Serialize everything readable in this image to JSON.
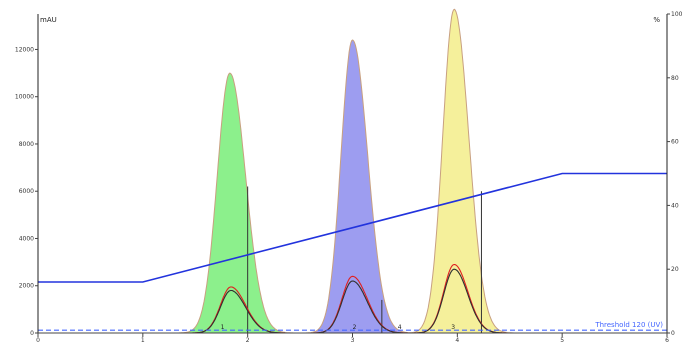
{
  "chart_data": {
    "type": "line",
    "title": "",
    "left_axis_unit": "mAU",
    "right_axis_unit": "%",
    "x_range": [
      0,
      6
    ],
    "y_left_range": [
      0,
      13500
    ],
    "y_right_range": [
      0,
      100
    ],
    "x_ticks": [
      {
        "value": 0,
        "label": "0"
      },
      {
        "value": 1,
        "label": "1"
      },
      {
        "value": 2,
        "label": "2"
      },
      {
        "value": 3,
        "label": "3"
      },
      {
        "value": 4,
        "label": "4"
      },
      {
        "value": 5,
        "label": "5"
      },
      {
        "value": 6,
        "label": "6"
      }
    ],
    "y_left_ticks": [
      {
        "value": 0,
        "label": "0"
      },
      {
        "value": 2000,
        "label": "2000"
      },
      {
        "value": 4000,
        "label": "4000"
      },
      {
        "value": 6000,
        "label": "6000"
      },
      {
        "value": 8000,
        "label": "8000"
      },
      {
        "value": 10000,
        "label": "10000"
      },
      {
        "value": 12000,
        "label": "12000"
      }
    ],
    "y_right_ticks": [
      {
        "value": 0,
        "label": "0"
      },
      {
        "value": 20,
        "label": "20"
      },
      {
        "value": 40,
        "label": "40"
      },
      {
        "value": 60,
        "label": "60"
      },
      {
        "value": 80,
        "label": "80"
      },
      {
        "value": 100,
        "label": "100"
      }
    ],
    "grid": false,
    "peaks": [
      {
        "label": "1",
        "center": 1.83,
        "height": 11000,
        "sigma_left": 0.12,
        "sigma_right": 0.15,
        "fill": "#8cf08c",
        "stroke": "#c8a080",
        "cut": 2.0,
        "cut_top": 6200,
        "label_x": 1.76
      },
      {
        "label": "2",
        "center": 3.0,
        "height": 12400,
        "sigma_left": 0.11,
        "sigma_right": 0.145,
        "fill": "#9d9df0",
        "stroke": "#c8a080",
        "cut": 3.28,
        "cut_top": 1400,
        "label_x": 3.02
      },
      {
        "label": "3",
        "center": 3.97,
        "height": 13700,
        "sigma_left": 0.11,
        "sigma_right": 0.14,
        "fill": "#f5f09b",
        "stroke": "#c8a080",
        "cut": 4.23,
        "cut_top": 6000,
        "label_x": 3.96
      }
    ],
    "small_peaks": [
      {
        "center": 1.84,
        "height": 1950,
        "sigma_left": 0.1,
        "sigma_right": 0.14,
        "color": "#e02020"
      },
      {
        "center": 1.84,
        "height": 1800,
        "sigma_left": 0.1,
        "sigma_right": 0.14,
        "color": "#303030"
      },
      {
        "center": 3.0,
        "height": 2400,
        "sigma_left": 0.1,
        "sigma_right": 0.14,
        "color": "#e02020"
      },
      {
        "center": 3.0,
        "height": 2200,
        "sigma_left": 0.1,
        "sigma_right": 0.14,
        "color": "#303030"
      },
      {
        "center": 3.97,
        "height": 2900,
        "sigma_left": 0.1,
        "sigma_right": 0.13,
        "color": "#e02020"
      },
      {
        "center": 3.97,
        "height": 2700,
        "sigma_left": 0.1,
        "sigma_right": 0.13,
        "color": "#303030"
      }
    ],
    "extra_labels": [
      {
        "text": "4",
        "x": 3.45
      }
    ],
    "gradient": {
      "color": "#2233dd",
      "axis": "right",
      "points": [
        [
          0,
          16
        ],
        [
          1.0,
          16
        ],
        [
          5.0,
          50
        ],
        [
          6.0,
          50
        ]
      ]
    },
    "threshold": {
      "label": "Threshold 120 (UV)",
      "value": 120,
      "color": "#4466ff"
    }
  }
}
